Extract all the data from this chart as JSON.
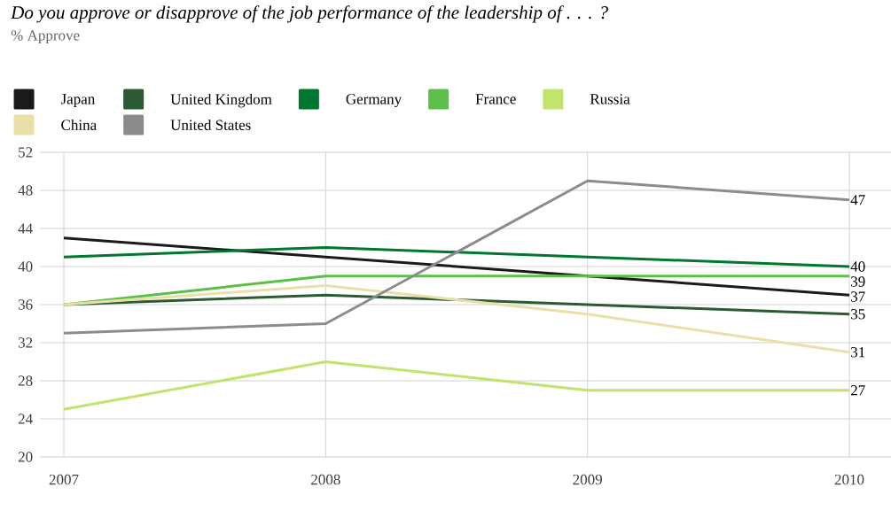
{
  "chart_data": {
    "type": "line",
    "title": "Do you approve or disapprove of the job performance of the leadership of . . . ?",
    "subtitle": "% Approve",
    "categories": [
      "2007",
      "2008",
      "2009",
      "2010"
    ],
    "series": [
      {
        "name": "Japan",
        "color": "#1a1a1a",
        "values": [
          43,
          41,
          39,
          37
        ],
        "value_labels": [
          null,
          null,
          null,
          "37"
        ]
      },
      {
        "name": "United Kingdom",
        "color": "#2b5a34",
        "values": [
          36,
          37,
          36,
          35
        ],
        "value_labels": [
          null,
          null,
          null,
          "35"
        ]
      },
      {
        "name": "Germany",
        "color": "#00772f",
        "values": [
          41,
          42,
          41,
          40
        ],
        "value_labels": [
          null,
          null,
          null,
          "40"
        ]
      },
      {
        "name": "France",
        "color": "#5cbf4a",
        "values": [
          36,
          39,
          39,
          39
        ],
        "value_labels": [
          null,
          null,
          null,
          "39"
        ]
      },
      {
        "name": "Russia",
        "color": "#c2e36c",
        "values": [
          25,
          30,
          27,
          27
        ],
        "value_labels": [
          null,
          null,
          null,
          "27"
        ]
      },
      {
        "name": "China",
        "color": "#e8e0a8",
        "values": [
          36,
          38,
          35,
          31
        ],
        "value_labels": [
          null,
          null,
          null,
          "31"
        ]
      },
      {
        "name": "United States",
        "color": "#8c8c8c",
        "values": [
          33,
          34,
          49,
          47
        ],
        "value_labels": [
          null,
          null,
          null,
          "47"
        ]
      }
    ],
    "ylim": [
      20,
      52
    ],
    "yticks": [
      20,
      24,
      28,
      32,
      36,
      40,
      44,
      48,
      52
    ],
    "grid": true,
    "legend": "top left"
  }
}
